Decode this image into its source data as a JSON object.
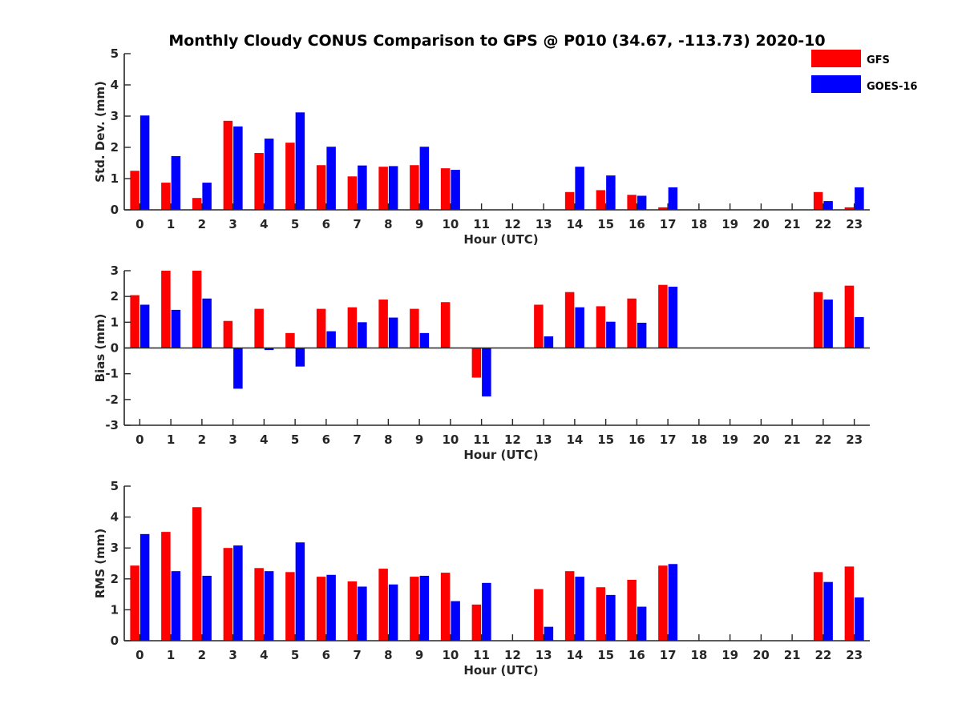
{
  "chart_data": {
    "title": "Monthly Cloudy CONUS Comparison to GPS @ P010 (34.67, -113.73) 2020-10",
    "legend": {
      "placement": "top-right",
      "entries": [
        {
          "name": "GFS",
          "color": "#ff0000"
        },
        {
          "name": "GOES-16",
          "color": "#0000ff"
        }
      ]
    },
    "panels": [
      {
        "type": "bar",
        "ylabel": "Std. Dev. (mm)",
        "xlabel": "Hour (UTC)",
        "ylim": [
          0,
          5
        ],
        "yticks": [
          0,
          1,
          2,
          3,
          4,
          5
        ],
        "categories": [
          "0",
          "1",
          "2",
          "3",
          "4",
          "5",
          "6",
          "7",
          "8",
          "9",
          "10",
          "11",
          "12",
          "13",
          "14",
          "15",
          "16",
          "17",
          "18",
          "19",
          "20",
          "21",
          "22",
          "23"
        ],
        "series": [
          {
            "name": "GFS",
            "color": "#ff0000",
            "values": [
              1.25,
              0.87,
              0.38,
              2.85,
              1.82,
              2.15,
              1.43,
              1.07,
              1.38,
              1.43,
              1.33,
              null,
              null,
              null,
              0.57,
              0.63,
              0.48,
              0.08,
              null,
              null,
              null,
              null,
              0.57,
              0.08
            ]
          },
          {
            "name": "GOES-16",
            "color": "#0000ff",
            "values": [
              3.02,
              1.72,
              0.87,
              2.67,
              2.28,
              3.12,
              2.02,
              1.42,
              1.4,
              2.02,
              1.28,
              null,
              null,
              null,
              1.38,
              1.1,
              0.45,
              0.72,
              null,
              null,
              null,
              null,
              0.28,
              0.72
            ]
          }
        ]
      },
      {
        "type": "bar",
        "ylabel": "Bias (mm)",
        "xlabel": "Hour (UTC)",
        "ylim": [
          -3,
          3
        ],
        "yticks": [
          -3,
          -2,
          -1,
          0,
          1,
          2,
          3
        ],
        "categories": [
          "0",
          "1",
          "2",
          "3",
          "4",
          "5",
          "6",
          "7",
          "8",
          "9",
          "10",
          "11",
          "12",
          "13",
          "14",
          "15",
          "16",
          "17",
          "18",
          "19",
          "20",
          "21",
          "22",
          "23"
        ],
        "series": [
          {
            "name": "GFS",
            "color": "#ff0000",
            "values": [
              2.05,
              3.0,
              3.0,
              1.05,
              1.52,
              0.58,
              1.52,
              1.58,
              1.88,
              1.52,
              1.78,
              -1.15,
              null,
              1.68,
              2.17,
              1.62,
              1.92,
              2.45,
              null,
              null,
              null,
              null,
              2.17,
              2.42
            ]
          },
          {
            "name": "GOES-16",
            "color": "#0000ff",
            "values": [
              1.68,
              1.48,
              1.92,
              -1.58,
              -0.08,
              -0.72,
              0.65,
              1.0,
              1.18,
              0.58,
              null,
              -1.88,
              null,
              0.45,
              1.58,
              1.02,
              0.98,
              2.38,
              null,
              null,
              null,
              null,
              1.88,
              1.2
            ]
          }
        ]
      },
      {
        "type": "bar",
        "ylabel": "RMS (mm)",
        "xlabel": "Hour (UTC)",
        "ylim": [
          0,
          5
        ],
        "yticks": [
          0,
          1,
          2,
          3,
          4,
          5
        ],
        "categories": [
          "0",
          "1",
          "2",
          "3",
          "4",
          "5",
          "6",
          "7",
          "8",
          "9",
          "10",
          "11",
          "12",
          "13",
          "14",
          "15",
          "16",
          "17",
          "18",
          "19",
          "20",
          "21",
          "22",
          "23"
        ],
        "series": [
          {
            "name": "GFS",
            "color": "#ff0000",
            "values": [
              2.43,
              3.52,
              4.32,
              3.0,
              2.35,
              2.22,
              2.07,
              1.92,
              2.33,
              2.07,
              2.2,
              1.17,
              null,
              1.67,
              2.25,
              1.73,
              1.97,
              2.43,
              null,
              null,
              null,
              null,
              2.22,
              2.4
            ]
          },
          {
            "name": "GOES-16",
            "color": "#0000ff",
            "values": [
              3.45,
              2.25,
              2.1,
              3.08,
              2.25,
              3.18,
              2.13,
              1.75,
              1.82,
              2.1,
              1.28,
              1.87,
              null,
              0.45,
              2.07,
              1.48,
              1.1,
              2.48,
              null,
              null,
              null,
              null,
              1.9,
              1.4
            ]
          }
        ]
      }
    ]
  }
}
